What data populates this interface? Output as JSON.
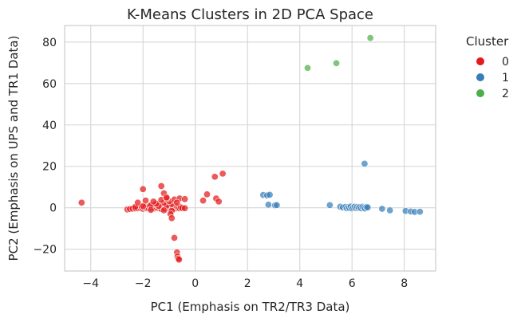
{
  "chart_data": {
    "type": "scatter",
    "title": "K-Means Clusters in 2D PCA Space",
    "xlabel": "PC1 (Emphasis on TR2/TR3 Data)",
    "ylabel": "PC2 (Emphasis on UPS and TR1 Data)",
    "xlim": [
      -5.0,
      9.2
    ],
    "ylim": [
      -30.5,
      88.0
    ],
    "xticks": [
      -4,
      -2,
      0,
      2,
      4,
      6,
      8
    ],
    "yticks": [
      -20,
      0,
      20,
      40,
      60,
      80
    ],
    "xtick_labels": [
      "−4",
      "−2",
      "0",
      "2",
      "4",
      "6",
      "8"
    ],
    "ytick_labels": [
      "−20",
      "0",
      "20",
      "40",
      "60",
      "80"
    ],
    "grid": true,
    "legend": {
      "title": "Cluster",
      "placement": "outside-right"
    },
    "series": [
      {
        "name": "0",
        "color": "#e41a1c",
        "points": [
          [
            -4.35,
            2.5
          ],
          [
            -2.6,
            -0.8
          ],
          [
            -2.5,
            -0.6
          ],
          [
            -2.4,
            -0.4
          ],
          [
            -2.3,
            -0.3
          ],
          [
            -2.2,
            -0.2
          ],
          [
            -2.1,
            0.0
          ],
          [
            -2.05,
            0.3
          ],
          [
            -2.0,
            -0.5
          ],
          [
            -1.95,
            0.1
          ],
          [
            -1.9,
            0.5
          ],
          [
            -1.85,
            -0.2
          ],
          [
            -1.8,
            0.2
          ],
          [
            -1.75,
            0.8
          ],
          [
            -1.7,
            -0.4
          ],
          [
            -1.65,
            0.0
          ],
          [
            -1.6,
            0.6
          ],
          [
            -1.55,
            -0.3
          ],
          [
            -1.5,
            0.2
          ],
          [
            -1.45,
            1.0
          ],
          [
            -1.4,
            -0.1
          ],
          [
            -1.35,
            0.4
          ],
          [
            -1.3,
            -0.6
          ],
          [
            -1.25,
            0.3
          ],
          [
            -1.2,
            0.0
          ],
          [
            -1.15,
            -0.4
          ],
          [
            -1.1,
            0.5
          ],
          [
            -1.05,
            0.1
          ],
          [
            -1.0,
            -0.2
          ],
          [
            -0.95,
            0.4
          ],
          [
            -0.9,
            -0.5
          ],
          [
            -0.85,
            0.2
          ],
          [
            -0.8,
            0.0
          ],
          [
            -0.75,
            -0.3
          ],
          [
            -0.7,
            0.6
          ],
          [
            -0.65,
            0.1
          ],
          [
            -0.6,
            -0.2
          ],
          [
            -0.55,
            0.3
          ],
          [
            -0.5,
            -0.1
          ],
          [
            -0.4,
            -0.2
          ],
          [
            -2.3,
            0.4
          ],
          [
            -2.0,
            0.8
          ],
          [
            -1.7,
            1.2
          ],
          [
            -1.4,
            0.9
          ],
          [
            -1.1,
            1.0
          ],
          [
            -2.2,
            2.5
          ],
          [
            -1.5,
            2.0
          ],
          [
            -1.2,
            2.5
          ],
          [
            -0.9,
            1.8
          ],
          [
            -1.9,
            3.5
          ],
          [
            -1.6,
            3.0
          ],
          [
            -1.3,
            3.8
          ],
          [
            -1.0,
            3.2
          ],
          [
            -0.8,
            4.0
          ],
          [
            -0.6,
            4.5
          ],
          [
            -0.4,
            4.2
          ],
          [
            -1.1,
            4.5
          ],
          [
            -0.7,
            2.5
          ],
          [
            -1.7,
            -1.0
          ],
          [
            -1.2,
            -1.2
          ],
          [
            -0.9,
            -1.5
          ],
          [
            -2.0,
            9.0
          ],
          [
            -1.3,
            10.5
          ],
          [
            -1.2,
            7.0
          ],
          [
            -1.1,
            5.0
          ],
          [
            -0.95,
            -3.0
          ],
          [
            -0.9,
            -5.0
          ],
          [
            -0.8,
            -14.5
          ],
          [
            -0.7,
            -21.5
          ],
          [
            -0.68,
            -23.5
          ],
          [
            -0.65,
            -24.5
          ],
          [
            -0.62,
            -25.0
          ],
          [
            0.3,
            3.5
          ],
          [
            0.45,
            6.5
          ],
          [
            0.75,
            15.0
          ],
          [
            0.8,
            4.5
          ],
          [
            0.9,
            3.0
          ],
          [
            1.05,
            16.5
          ]
        ]
      },
      {
        "name": "1",
        "color": "#377eb8",
        "points": [
          [
            2.6,
            6.2
          ],
          [
            2.75,
            6.0
          ],
          [
            2.85,
            6.3
          ],
          [
            2.8,
            1.5
          ],
          [
            3.05,
            1.2
          ],
          [
            3.12,
            1.3
          ],
          [
            5.15,
            1.3
          ],
          [
            5.55,
            0.5
          ],
          [
            5.65,
            0.2
          ],
          [
            5.75,
            0.4
          ],
          [
            5.8,
            -0.2
          ],
          [
            5.85,
            0.3
          ],
          [
            5.9,
            0.0
          ],
          [
            5.95,
            0.6
          ],
          [
            6.0,
            -0.3
          ],
          [
            6.05,
            0.2
          ],
          [
            6.1,
            0.5
          ],
          [
            6.15,
            -0.1
          ],
          [
            6.2,
            0.4
          ],
          [
            6.25,
            0.0
          ],
          [
            6.3,
            0.3
          ],
          [
            6.35,
            -0.2
          ],
          [
            6.4,
            0.5
          ],
          [
            6.45,
            0.1
          ],
          [
            6.5,
            -0.3
          ],
          [
            6.55,
            0.4
          ],
          [
            6.6,
            0.2
          ],
          [
            6.48,
            21.3
          ],
          [
            7.15,
            -0.5
          ],
          [
            7.45,
            -1.2
          ],
          [
            8.05,
            -1.5
          ],
          [
            8.25,
            -1.8
          ],
          [
            8.4,
            -2.0
          ],
          [
            8.6,
            -1.9
          ]
        ]
      },
      {
        "name": "2",
        "color": "#4daf4a",
        "points": [
          [
            4.3,
            67.5
          ],
          [
            5.4,
            69.8
          ],
          [
            6.7,
            82.0
          ]
        ]
      }
    ]
  }
}
